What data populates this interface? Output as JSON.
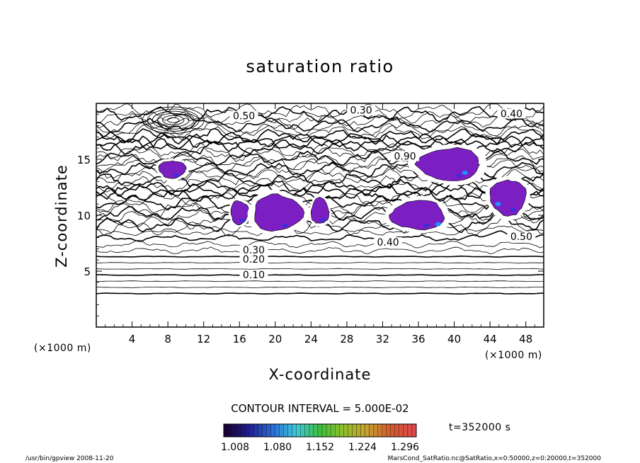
{
  "chart_data": {
    "type": "contour",
    "title": "saturation ratio",
    "xlabel": "X-coordinate",
    "ylabel": "Z-coordinate",
    "x_unit": "(×1000 m)",
    "y_unit": "(×1000 m)",
    "xlim": [
      0,
      50
    ],
    "ylim": [
      0,
      20
    ],
    "x_ticks": [
      4,
      8,
      12,
      16,
      20,
      24,
      28,
      32,
      36,
      40,
      44,
      48
    ],
    "y_ticks": [
      5,
      10,
      15
    ],
    "grid": false,
    "contour_interval_text": "CONTOUR INTERVAL = 5.000E-02",
    "contour_levels_labeled": [
      {
        "value": "0.10",
        "x": 17.6,
        "z": 4.5
      },
      {
        "value": "0.20",
        "x": 17.6,
        "z": 5.9
      },
      {
        "value": "0.30",
        "x": 17.6,
        "z": 6.7
      },
      {
        "value": "0.40",
        "x": 32.6,
        "z": 7.4
      },
      {
        "value": "0.50",
        "x": 47.5,
        "z": 7.9
      },
      {
        "value": "0.50",
        "x": 16.5,
        "z": 18.7
      },
      {
        "value": "0.30",
        "x": 29.6,
        "z": 19.2
      },
      {
        "value": "0.40",
        "x": 46.4,
        "z": 18.9
      },
      {
        "value": "0.90",
        "x": 34.5,
        "z": 15.1
      }
    ],
    "supersaturated_regions": [
      {
        "x": [
          7.0,
          10.0
        ],
        "z": [
          13.3,
          14.9
        ]
      },
      {
        "x": [
          15.0,
          17.0
        ],
        "z": [
          9.2,
          11.3
        ]
      },
      {
        "x": [
          17.5,
          23.0
        ],
        "z": [
          8.6,
          11.8
        ]
      },
      {
        "x": [
          24.0,
          26.0
        ],
        "z": [
          9.2,
          11.5
        ]
      },
      {
        "x": [
          33.0,
          39.0
        ],
        "z": [
          8.7,
          11.3
        ]
      },
      {
        "x": [
          36.0,
          43.0
        ],
        "z": [
          13.1,
          16.0
        ]
      },
      {
        "x": [
          44.0,
          48.0
        ],
        "z": [
          10.0,
          13.2
        ]
      }
    ],
    "colorbar": {
      "tick_labels": [
        "1.008",
        "1.080",
        "1.152",
        "1.224",
        "1.296"
      ],
      "range": [
        1.008,
        1.296
      ]
    },
    "time_label": "t=352000 s"
  },
  "footer": {
    "left": "/usr/bin/gpview   2008-11-20",
    "right": "MarsCond_SatRatio.nc@SatRatio,x=0:50000,z=0:20000,t=352000"
  },
  "colors": {
    "supersat_fill": "#7B1FC2",
    "supersat_peak": "#1E90FF",
    "supersat_core": "#3A2FD8",
    "contour": "#000000",
    "colorbar_stops": [
      "#1a0033",
      "#1f1f8f",
      "#2a6fd8",
      "#3fc8d8",
      "#3fbf3f",
      "#8fbf2a",
      "#c8a030",
      "#d05a30",
      "#e04a4a"
    ]
  }
}
